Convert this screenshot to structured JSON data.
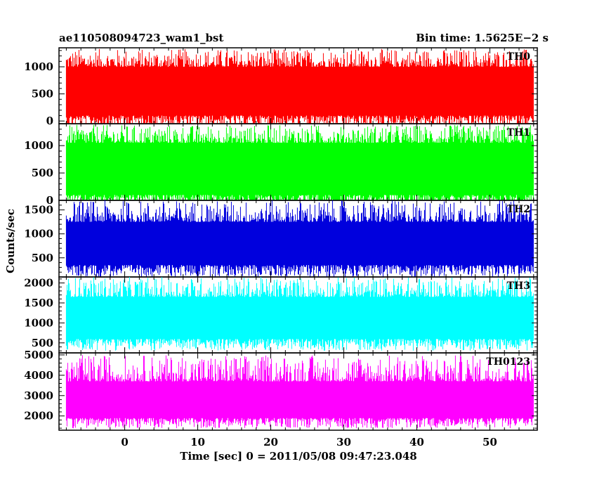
{
  "chart_data": {
    "type": "line",
    "title_left": "ae110508094723_wam1_bst",
    "title_right": "Bin time: 1.5625E−2 s",
    "xlabel": "Time [sec] 0 = 2011/05/08 09:47:23.048",
    "ylabel": "Counts/sec",
    "x_ticks": [
      0,
      10,
      20,
      30,
      40,
      50
    ],
    "xlim": [
      -9,
      56.5
    ],
    "data_x_range": [
      -8,
      56
    ],
    "grid": false,
    "panels": [
      {
        "name": "TH0",
        "color": "#ff0000",
        "ylim": [
          -50,
          1350
        ],
        "y_ticks": [
          0,
          500,
          1000
        ],
        "low": 100,
        "high": 1000,
        "spike_max": 1330
      },
      {
        "name": "TH1",
        "color": "#00ff00",
        "ylim": [
          0,
          1400
        ],
        "y_ticks": [
          0,
          500,
          1000
        ],
        "low": 100,
        "high": 1050,
        "spike_max": 1380
      },
      {
        "name": "TH2",
        "color": "#0000dd",
        "ylim": [
          100,
          1700
        ],
        "y_ticks": [
          500,
          1000,
          1500
        ],
        "low": 350,
        "high": 1250,
        "spike_max": 1700
      },
      {
        "name": "TH3",
        "color": "#00ffff",
        "ylim": [
          250,
          2150
        ],
        "y_ticks": [
          500,
          1000,
          1500,
          2000
        ],
        "low": 600,
        "high": 1650,
        "spike_max": 2150
      },
      {
        "name": "TH0123",
        "color": "#ff00ff",
        "ylim": [
          1300,
          5100
        ],
        "y_ticks": [
          2000,
          3000,
          4000,
          5000
        ],
        "low": 1900,
        "high": 3700,
        "spike_max": 5000
      }
    ]
  }
}
